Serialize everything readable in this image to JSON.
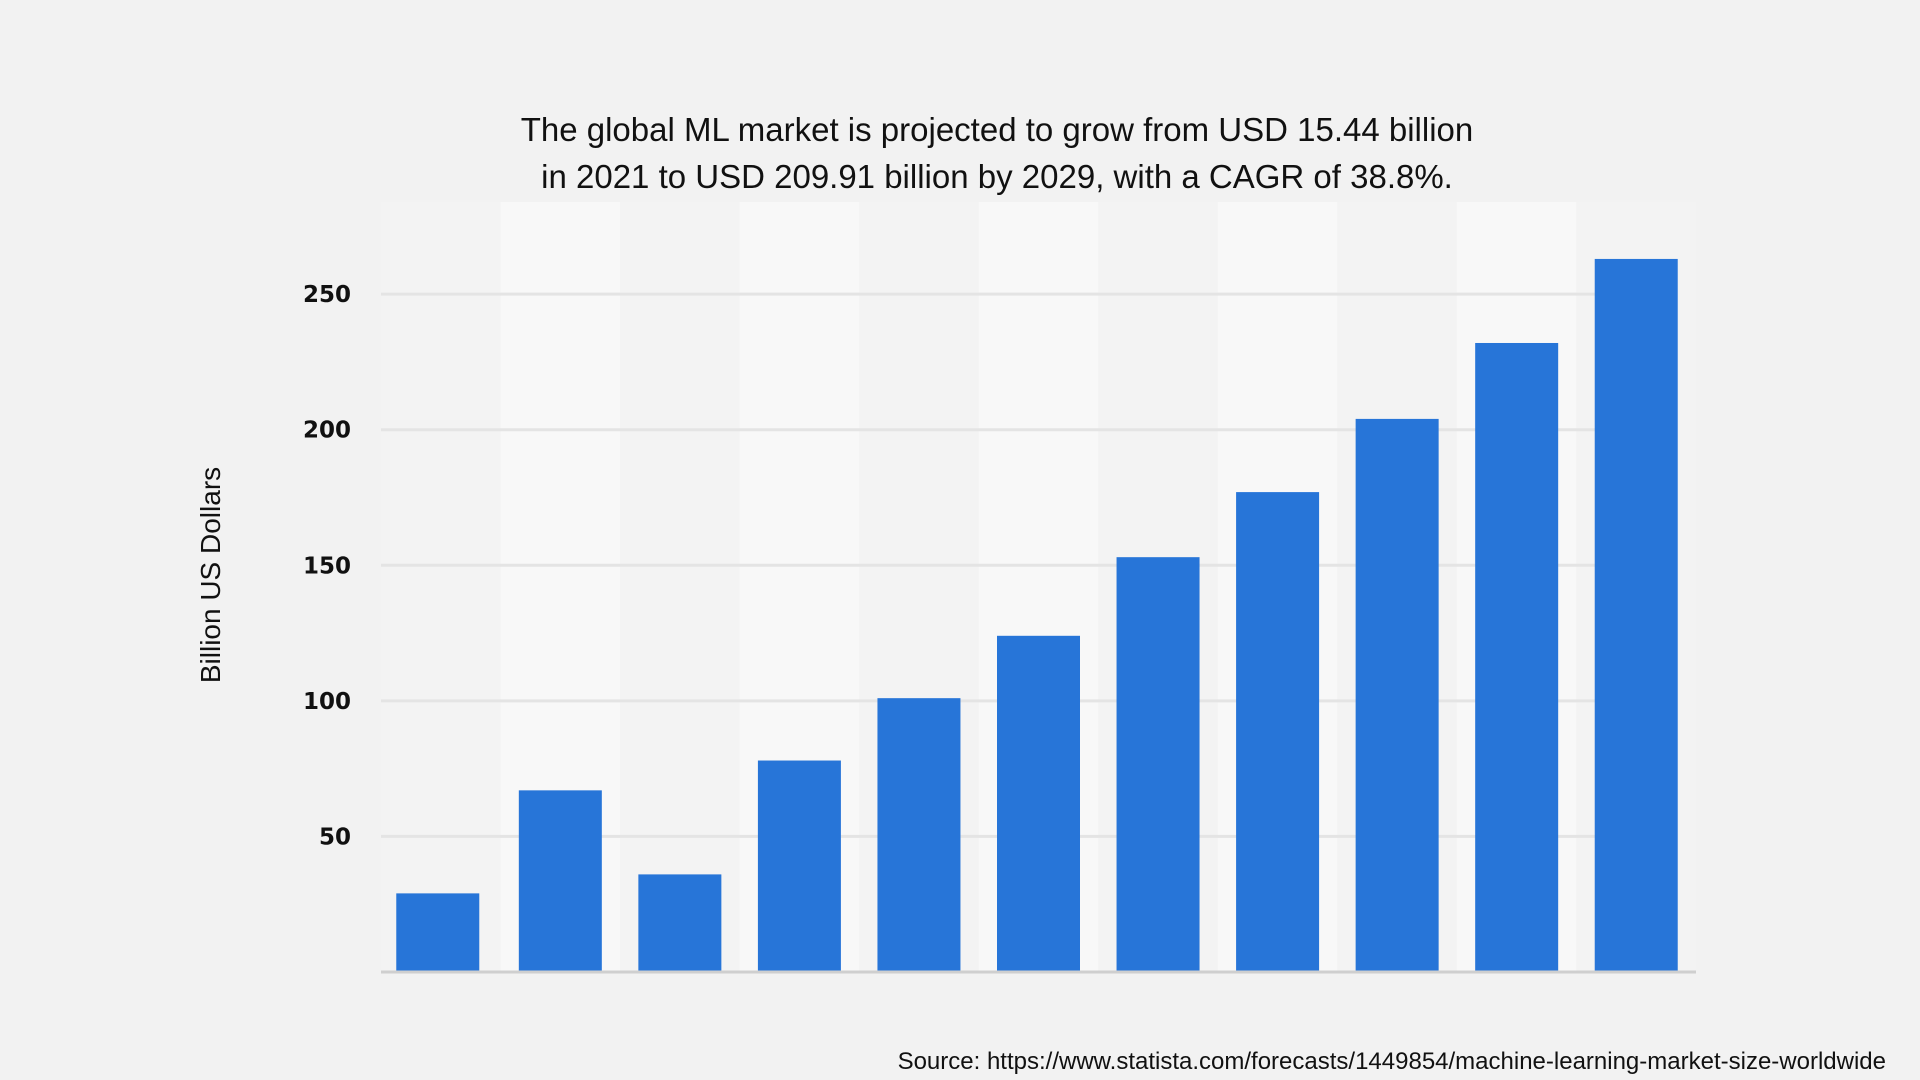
{
  "chart_data": {
    "type": "bar",
    "title": "The global ML market is projected to grow from USD 15.44 billion in 2021 to USD 209.91 billion by 2029, with a CAGR of 38.8%.",
    "title_lines": [
      "The global ML market is projected to grow from USD 15.44 billion",
      "in 2021 to USD 209.91 billion by 2029, with a CAGR of 38.8%."
    ],
    "xlabel": "",
    "ylabel": "Billion US Dollars",
    "ylim": [
      0,
      284
    ],
    "yticks": [
      50,
      100,
      150,
      200,
      250
    ],
    "grid": true,
    "bar_color": "#2775d8",
    "values": [
      29,
      67,
      36,
      78,
      101,
      124,
      153,
      177,
      204,
      232,
      263
    ]
  },
  "source": "Source: https://www.statista.com/forecasts/1449854/machine-learning-market-size-worldwide"
}
